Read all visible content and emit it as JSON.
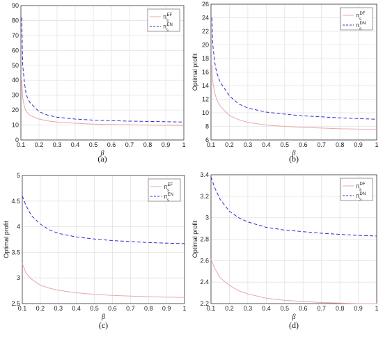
{
  "chart_data": [
    {
      "id": "a",
      "type": "line",
      "caption": "(a)",
      "xlabel": "β",
      "ylabel": "",
      "xlim": [
        0.1,
        1
      ],
      "ylim": [
        0,
        90
      ],
      "xticks": [
        "0.1",
        "0.2",
        "0.3",
        "0.4",
        "0.5",
        "0.6",
        "0.7",
        "0.8",
        "0.9",
        "1"
      ],
      "yticks": [
        "0",
        "10",
        "20",
        "30",
        "40",
        "50",
        "60",
        "70",
        "80",
        "90"
      ],
      "grid": true,
      "legend": "top-right",
      "x": [
        0.105,
        0.11,
        0.12,
        0.13,
        0.15,
        0.2,
        0.25,
        0.3,
        0.4,
        0.5,
        0.6,
        0.7,
        0.8,
        0.9,
        1.0
      ],
      "series": [
        {
          "name": "π",
          "sup": "EF",
          "sub": "s",
          "color": "#e8a8a8",
          "dash": "",
          "values": [
            40,
            28,
            22,
            19,
            16.5,
            14,
            12.8,
            12,
            11.2,
            10.6,
            10.3,
            10.1,
            9.9,
            9.8,
            9.7
          ]
        },
        {
          "name": "π",
          "sup": "EN",
          "sub": "s",
          "color": "#2f2fd6",
          "dash": "5,3",
          "values": [
            82,
            50,
            38,
            30,
            25,
            19,
            16.5,
            15.2,
            14,
            13.3,
            12.9,
            12.6,
            12.4,
            12.2,
            12
          ]
        }
      ]
    },
    {
      "id": "b",
      "type": "line",
      "caption": "(b)",
      "xlabel": "β",
      "ylabel": "Optimal profit",
      "xlim": [
        0.1,
        1
      ],
      "ylim": [
        6,
        26
      ],
      "xticks": [
        "0.1",
        "0.2",
        "0.3",
        "0.4",
        "0.5",
        "0.6",
        "0.7",
        "0.8",
        "0.9",
        "1"
      ],
      "yticks": [
        "6",
        "8",
        "10",
        "12",
        "14",
        "16",
        "18",
        "20",
        "22",
        "24",
        "26"
      ],
      "grid": true,
      "legend": "top-right",
      "x": [
        0.105,
        0.11,
        0.12,
        0.13,
        0.15,
        0.2,
        0.25,
        0.3,
        0.4,
        0.5,
        0.6,
        0.7,
        0.8,
        0.9,
        1.0
      ],
      "series": [
        {
          "name": "π",
          "sup": "DF",
          "sub": "s",
          "color": "#e8a8a8",
          "dash": "",
          "values": [
            17,
            14.5,
            13,
            12,
            11,
            9.6,
            9,
            8.6,
            8.2,
            8,
            7.85,
            7.75,
            7.65,
            7.6,
            7.55
          ]
        },
        {
          "name": "π",
          "sup": "DN",
          "sub": "s",
          "color": "#2f2fd6",
          "dash": "5,3",
          "values": [
            24,
            20,
            17.5,
            16,
            14.5,
            12.5,
            11.3,
            10.7,
            10.1,
            9.8,
            9.55,
            9.4,
            9.25,
            9.15,
            9.05
          ]
        }
      ]
    },
    {
      "id": "c",
      "type": "line",
      "caption": "(c)",
      "xlabel": "β",
      "ylabel": "Optimal profit",
      "xlim": [
        0.1,
        1
      ],
      "ylim": [
        2.5,
        5
      ],
      "xticks": [
        "0.1",
        "0.2",
        "0.3",
        "0.4",
        "0.5",
        "0.6",
        "0.7",
        "0.8",
        "0.9",
        "1"
      ],
      "yticks": [
        "2.5",
        "3",
        "3.5",
        "4",
        "4.5",
        "5"
      ],
      "grid": true,
      "legend": "top-right",
      "x": [
        0.1,
        0.12,
        0.15,
        0.2,
        0.25,
        0.3,
        0.4,
        0.5,
        0.6,
        0.7,
        0.8,
        0.9,
        1.0
      ],
      "series": [
        {
          "name": "π",
          "sup": "EF",
          "sub": "s",
          "color": "#e8a8a8",
          "dash": "",
          "values": [
            3.28,
            3.1,
            2.98,
            2.86,
            2.8,
            2.76,
            2.71,
            2.68,
            2.66,
            2.645,
            2.635,
            2.625,
            2.62
          ]
        },
        {
          "name": "π",
          "sup": "EN",
          "sub": "s",
          "color": "#2f2fd6",
          "dash": "5,3",
          "values": [
            4.6,
            4.42,
            4.22,
            4.05,
            3.94,
            3.87,
            3.8,
            3.76,
            3.73,
            3.71,
            3.69,
            3.68,
            3.67
          ]
        }
      ]
    },
    {
      "id": "d",
      "type": "line",
      "caption": "(d)",
      "xlabel": "β",
      "ylabel": "Optimal profit",
      "xlim": [
        0.1,
        1
      ],
      "ylim": [
        2.2,
        3.4
      ],
      "xticks": [
        "0.1",
        "0.2",
        "0.3",
        "0.4",
        "0.5",
        "0.6",
        "0.7",
        "0.8",
        "0.9",
        "1"
      ],
      "yticks": [
        "2.2",
        "2.4",
        "2.6",
        "2.8",
        "3",
        "3.2",
        "3.4"
      ],
      "grid": true,
      "legend": "top-right",
      "x": [
        0.1,
        0.12,
        0.15,
        0.2,
        0.25,
        0.3,
        0.4,
        0.5,
        0.6,
        0.7,
        0.8,
        0.9,
        1.0
      ],
      "series": [
        {
          "name": "π",
          "sup": "DF",
          "sub": "s",
          "color": "#e8a8a8",
          "dash": "",
          "values": [
            2.61,
            2.53,
            2.44,
            2.37,
            2.32,
            2.29,
            2.25,
            2.23,
            2.22,
            2.21,
            2.205,
            2.2,
            2.2
          ]
        },
        {
          "name": "π",
          "sup": "DN",
          "sub": "s",
          "color": "#2f2fd6",
          "dash": "5,3",
          "values": [
            3.38,
            3.28,
            3.17,
            3.06,
            3.0,
            2.96,
            2.91,
            2.885,
            2.87,
            2.855,
            2.845,
            2.835,
            2.83
          ]
        }
      ]
    }
  ]
}
